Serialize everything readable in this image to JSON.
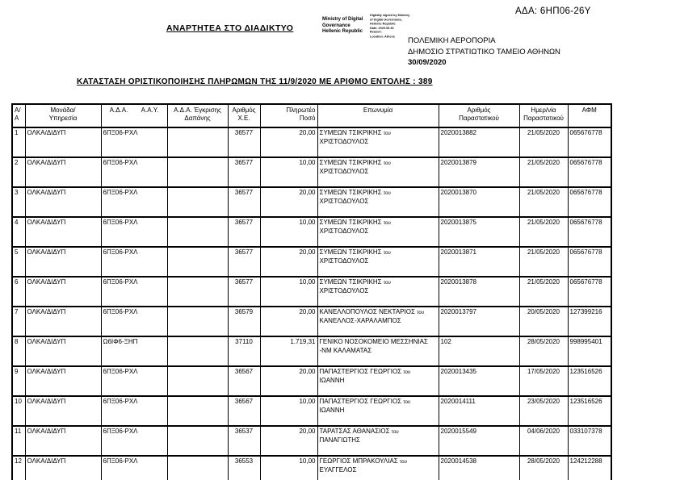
{
  "page": {
    "ada": "ΑΔΑ: 6ΗΠ06-26Υ",
    "posting_notice": "ΑΝΑΡΤΗΤΕΑ ΣΤΟ ΔΙΑΔΙΚΤΥΟ",
    "stamp": {
      "authority": [
        "Ministry of Digital",
        "Governance",
        "Hellenic Republic"
      ],
      "signature": [
        "Digitally signed by Ministry",
        "of Digital Governance,",
        "Hellenic Republic",
        "Date: 2020.09.30",
        "Reason:",
        "Location: Athens"
      ]
    },
    "organization": [
      "ΠΟΛΕΜΙΚΗ ΑΕΡΟΠΟΡΙΑ",
      "ΔΗΜΟΣΙΟ ΣΤΡΑΤΙΩΤΙΚΟ ΤΑΜΕΙΟ ΑΘΗΝΩΝ"
    ],
    "date": "30/09/2020",
    "title": "ΚΑΤΑΣΤΑΣΗ ΟΡΙΣΤΙΚΟΠΟΙΗΣΗΣ ΠΛΗΡΩΜΩΝ ΤΗΣ 11/9/2020 ΜΕ ΑΡΙΘΜΟ ΕΝΤΟΛΗΣ : 389"
  },
  "table": {
    "columns": [
      {
        "l1": "Α/Α",
        "l2": ""
      },
      {
        "l1": "Μονάδα/",
        "l2": "Υπηρεσία"
      },
      {
        "l1": "Α.Δ.Α.",
        "l1b": "Α.Α.Υ.",
        "l2": ""
      },
      {
        "l1": "Α.Δ.Α. Έγκρισης",
        "l2": "Δαπάνης"
      },
      {
        "l1": "Αριθμός",
        "l2": "Χ.Ε."
      },
      {
        "l1": "Πληρωτέο",
        "l2": "Ποσό"
      },
      {
        "l1": "Επωνυμία",
        "l2": ""
      },
      {
        "l1": "Αριθμός",
        "l2": "Παραστατικού"
      },
      {
        "l1": "Ημερ/νία",
        "l2": "Παραστατικού"
      },
      {
        "l1": "ΑΦΜ",
        "l2": ""
      }
    ],
    "rows": [
      {
        "aa": "1",
        "monada": "ΟΛΚΑ/ΔΙΔΥΠ",
        "ada_aay": "6ΠΞ06-ΡΧΛ",
        "ada_egrisis": "",
        "xe": "36577",
        "poso": "20,00",
        "ep_main": "ΣΥΜΕΩΝ ΤΣΙΚΡΙΚΗΣ",
        "ep_tou": "του",
        "ep_line2": "ΧΡΙΣΤΟΔΟΥΛΟΣ",
        "parastatiko": "2020013882",
        "par_date": "21/05/2020",
        "afm": "065676778"
      },
      {
        "aa": "2",
        "monada": "ΟΛΚΑ/ΔΙΔΥΠ",
        "ada_aay": "6ΠΞ06-ΡΧΛ",
        "ada_egrisis": "",
        "xe": "36577",
        "poso": "10,00",
        "ep_main": "ΣΥΜΕΩΝ ΤΣΙΚΡΙΚΗΣ",
        "ep_tou": "του",
        "ep_line2": "ΧΡΙΣΤΟΔΟΥΛΟΣ",
        "parastatiko": "2020013879",
        "par_date": "21/05/2020",
        "afm": "065676778"
      },
      {
        "aa": "3",
        "monada": "ΟΛΚΑ/ΔΙΔΥΠ",
        "ada_aay": "6ΠΞ06-ΡΧΛ",
        "ada_egrisis": "",
        "xe": "36577",
        "poso": "20,00",
        "ep_main": "ΣΥΜΕΩΝ ΤΣΙΚΡΙΚΗΣ",
        "ep_tou": "του",
        "ep_line2": "ΧΡΙΣΤΟΔΟΥΛΟΣ",
        "parastatiko": "2020013870",
        "par_date": "21/05/2020",
        "afm": "065676778"
      },
      {
        "aa": "4",
        "monada": "ΟΛΚΑ/ΔΙΔΥΠ",
        "ada_aay": "6ΠΞ06-ΡΧΛ",
        "ada_egrisis": "",
        "xe": "36577",
        "poso": "10,00",
        "ep_main": "ΣΥΜΕΩΝ ΤΣΙΚΡΙΚΗΣ",
        "ep_tou": "του",
        "ep_line2": "ΧΡΙΣΤΟΔΟΥΛΟΣ",
        "parastatiko": "2020013875",
        "par_date": "21/05/2020",
        "afm": "065676778"
      },
      {
        "aa": "5",
        "monada": "ΟΛΚΑ/ΔΙΔΥΠ",
        "ada_aay": "6ΠΞ06-ΡΧΛ",
        "ada_egrisis": "",
        "xe": "36577",
        "poso": "20,00",
        "ep_main": "ΣΥΜΕΩΝ ΤΣΙΚΡΙΚΗΣ",
        "ep_tou": "του",
        "ep_line2": "ΧΡΙΣΤΟΔΟΥΛΟΣ",
        "parastatiko": "2020013871",
        "par_date": "21/05/2020",
        "afm": "065676778"
      },
      {
        "aa": "6",
        "monada": "ΟΛΚΑ/ΔΙΔΥΠ",
        "ada_aay": "6ΠΞ06-ΡΧΛ",
        "ada_egrisis": "",
        "xe": "36577",
        "poso": "10,00",
        "ep_main": "ΣΥΜΕΩΝ ΤΣΙΚΡΙΚΗΣ",
        "ep_tou": "του",
        "ep_line2": "ΧΡΙΣΤΟΔΟΥΛΟΣ",
        "parastatiko": "2020013878",
        "par_date": "21/05/2020",
        "afm": "065676778"
      },
      {
        "aa": "7",
        "monada": "ΟΛΚΑ/ΔΙΔΥΠ",
        "ada_aay": "6ΠΞ06-ΡΧΛ",
        "ada_egrisis": "",
        "xe": "36579",
        "poso": "20,00",
        "ep_main": "ΚΑΝΕΛΛΟΠΟΥΛΟΣ ΝΕΚΤΑΡΙΟΣ",
        "ep_tou": "του",
        "ep_line2": "ΚΑΝΕΛΛΟΣ-ΧΑΡΑΛΑΜΠΟΣ",
        "parastatiko": "2020013797",
        "par_date": "20/05/2020",
        "afm": "127399216"
      },
      {
        "aa": "8",
        "monada": "ΟΛΚΑ/ΔΙΔΥΠ",
        "ada_aay": "Ω6ΙΦ6-ΞΗΠ",
        "ada_egrisis": "",
        "xe": "37110",
        "poso": "1.719,31",
        "ep_main": "ΓΕΝΙΚΟ ΝΟΣΟΚΟΜΕΙΟ ΜΕΣΣΗΝΙΑΣ",
        "ep_tou": "",
        "ep_line2": "-ΝΜ ΚΑΛΑΜΑΤΑΣ",
        "parastatiko": "102",
        "par_date": "28/05/2020",
        "afm": "998995401"
      },
      {
        "aa": "9",
        "monada": "ΟΛΚΑ/ΔΙΔΥΠ",
        "ada_aay": "6ΠΞ06-ΡΧΛ",
        "ada_egrisis": "",
        "xe": "36567",
        "poso": "20,00",
        "ep_main": "ΠΑΠΑΣΤΕΡΓΙΟΣ ΓΕΩΡΓΙΟΣ",
        "ep_tou": "του",
        "ep_line2": "ΙΩΑΝΝΗ",
        "parastatiko": "2020013435",
        "par_date": "17/05/2020",
        "afm": "123516526"
      },
      {
        "aa": "10",
        "monada": "ΟΛΚΑ/ΔΙΔΥΠ",
        "ada_aay": "6ΠΞ06-ΡΧΛ",
        "ada_egrisis": "",
        "xe": "36567",
        "poso": "10,00",
        "ep_main": "ΠΑΠΑΣΤΕΡΓΙΟΣ ΓΕΩΡΓΙΟΣ",
        "ep_tou": "του",
        "ep_line2": "ΙΩΑΝΝΗ",
        "parastatiko": "2020014111",
        "par_date": "23/05/2020",
        "afm": "123516526"
      },
      {
        "aa": "11",
        "monada": "ΟΛΚΑ/ΔΙΔΥΠ",
        "ada_aay": "6ΠΞ06-ΡΧΛ",
        "ada_egrisis": "",
        "xe": "36537",
        "poso": "20,00",
        "ep_main": "ΤΑΡΑΤΣΑΣ ΑΘΑΝΑΣΙΟΣ",
        "ep_tou": "του",
        "ep_line2": "ΠΑΝΑΓΙΩΤΗΣ",
        "parastatiko": "2020015549",
        "par_date": "04/06/2020",
        "afm": "033107378"
      },
      {
        "aa": "12",
        "monada": "ΟΛΚΑ/ΔΙΔΥΠ",
        "ada_aay": "6ΠΞ06-ΡΧΛ",
        "ada_egrisis": "",
        "xe": "36553",
        "poso": "10,00",
        "ep_main": "ΓΕΩΡΓΙΟΣ ΜΠΡΑΚΟΥΛΙΑΣ",
        "ep_tou": "του",
        "ep_line2": "ΕΥΑΓΓΕΛΟΣ",
        "parastatiko": "2020014538",
        "par_date": "28/05/2020",
        "afm": "124212288"
      }
    ]
  }
}
